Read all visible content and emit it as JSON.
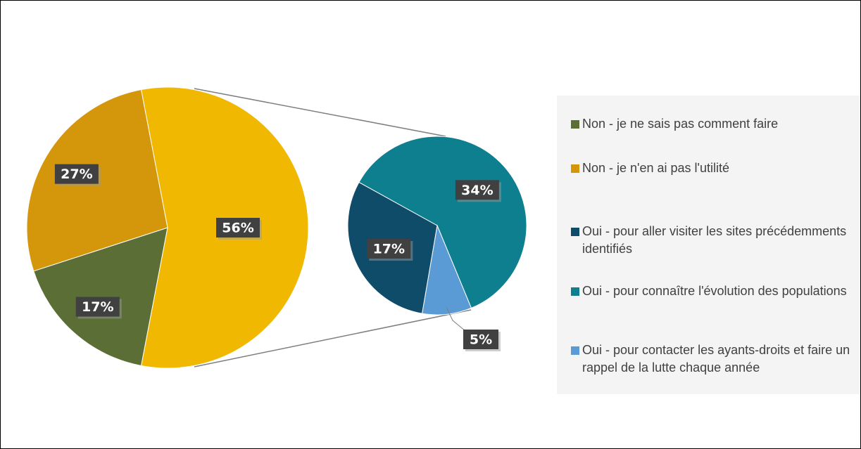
{
  "chart_data": {
    "type": "pie-of-pie",
    "categories": [
      "Non - je ne sais pas comment faire",
      "Non - je n'en ai pas l'utilité",
      "Oui - pour aller visiter les sites précédemments identifiés",
      "Oui - pour connaître l'évolution des populations",
      "Oui - pour contacter les ayants-droits et faire un rappel de la lutte chaque année"
    ],
    "values": [
      17,
      27,
      17,
      34,
      5
    ],
    "value_labels": [
      "17%",
      "27%",
      "17%",
      "34%",
      "5%"
    ],
    "colors": [
      "#5a6e35",
      "#d4960a",
      "#0f4c6a",
      "#0e7f8f",
      "#5b9bd5"
    ],
    "combined_value": 56,
    "combined_label": "56%",
    "combined_color": "#f0b800",
    "legend": "right"
  }
}
